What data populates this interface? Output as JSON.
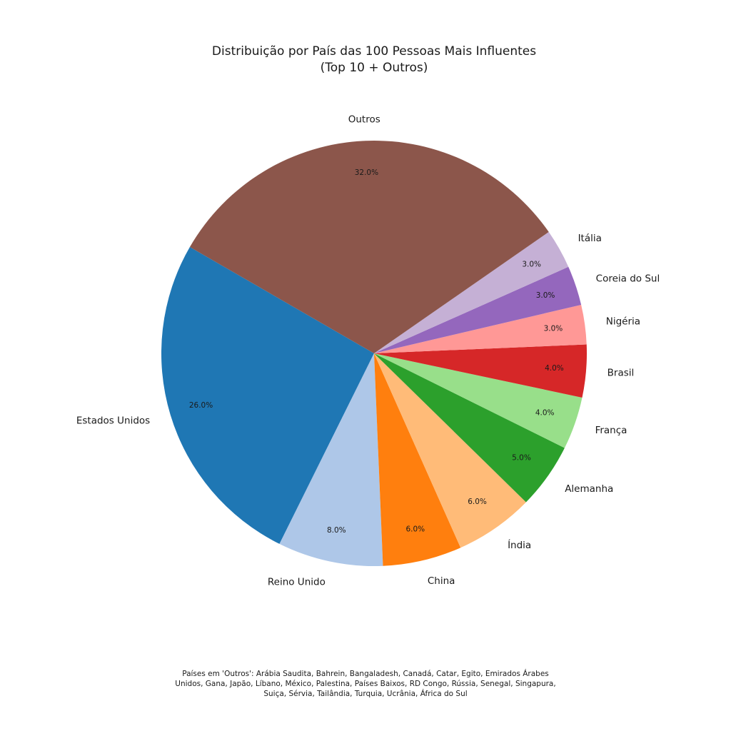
{
  "chart_data": {
    "type": "pie",
    "title": "Distribuição por País das 100 Pessoas Mais Influentes",
    "subtitle": "(Top 10 + Outros)",
    "start_angle_deg": 150,
    "direction": "counterclockwise",
    "slices": [
      {
        "label": "Estados Unidos",
        "value": 26.0,
        "pct_text": "26.0%",
        "color": "#1f77b4"
      },
      {
        "label": "Reino Unido",
        "value": 8.0,
        "pct_text": "8.0%",
        "color": "#aec7e8"
      },
      {
        "label": "China",
        "value": 6.0,
        "pct_text": "6.0%",
        "color": "#ff7f0e"
      },
      {
        "label": "Índia",
        "value": 6.0,
        "pct_text": "6.0%",
        "color": "#ffbb78"
      },
      {
        "label": "Alemanha",
        "value": 5.0,
        "pct_text": "5.0%",
        "color": "#2ca02c"
      },
      {
        "label": "França",
        "value": 4.0,
        "pct_text": "4.0%",
        "color": "#98df8a"
      },
      {
        "label": "Brasil",
        "value": 4.0,
        "pct_text": "4.0%",
        "color": "#d62728"
      },
      {
        "label": "Nigéria",
        "value": 3.0,
        "pct_text": "3.0%",
        "color": "#ff9896"
      },
      {
        "label": "Coreia do Sul",
        "value": 3.0,
        "pct_text": "3.0%",
        "color": "#9467bd"
      },
      {
        "label": "Itália",
        "value": 3.0,
        "pct_text": "3.0%",
        "color": "#c5b0d5"
      },
      {
        "label": "Outros",
        "value": 32.0,
        "pct_text": "32.0%",
        "color": "#8c564b"
      }
    ],
    "footnote": [
      "Países em 'Outros': Arábia Saudita, Bahrein, Bangaladesh, Canadá, Catar, Egito, Emirados Árabes",
      "Unidos, Gana, Japão, Líbano, México, Palestina, Países Baixos, RD Congo, Rússia, Senegal, Singapura,",
      "Suiça, Sérvia, Tailândia, Turquia, Ucrânia, África do Sul"
    ]
  }
}
